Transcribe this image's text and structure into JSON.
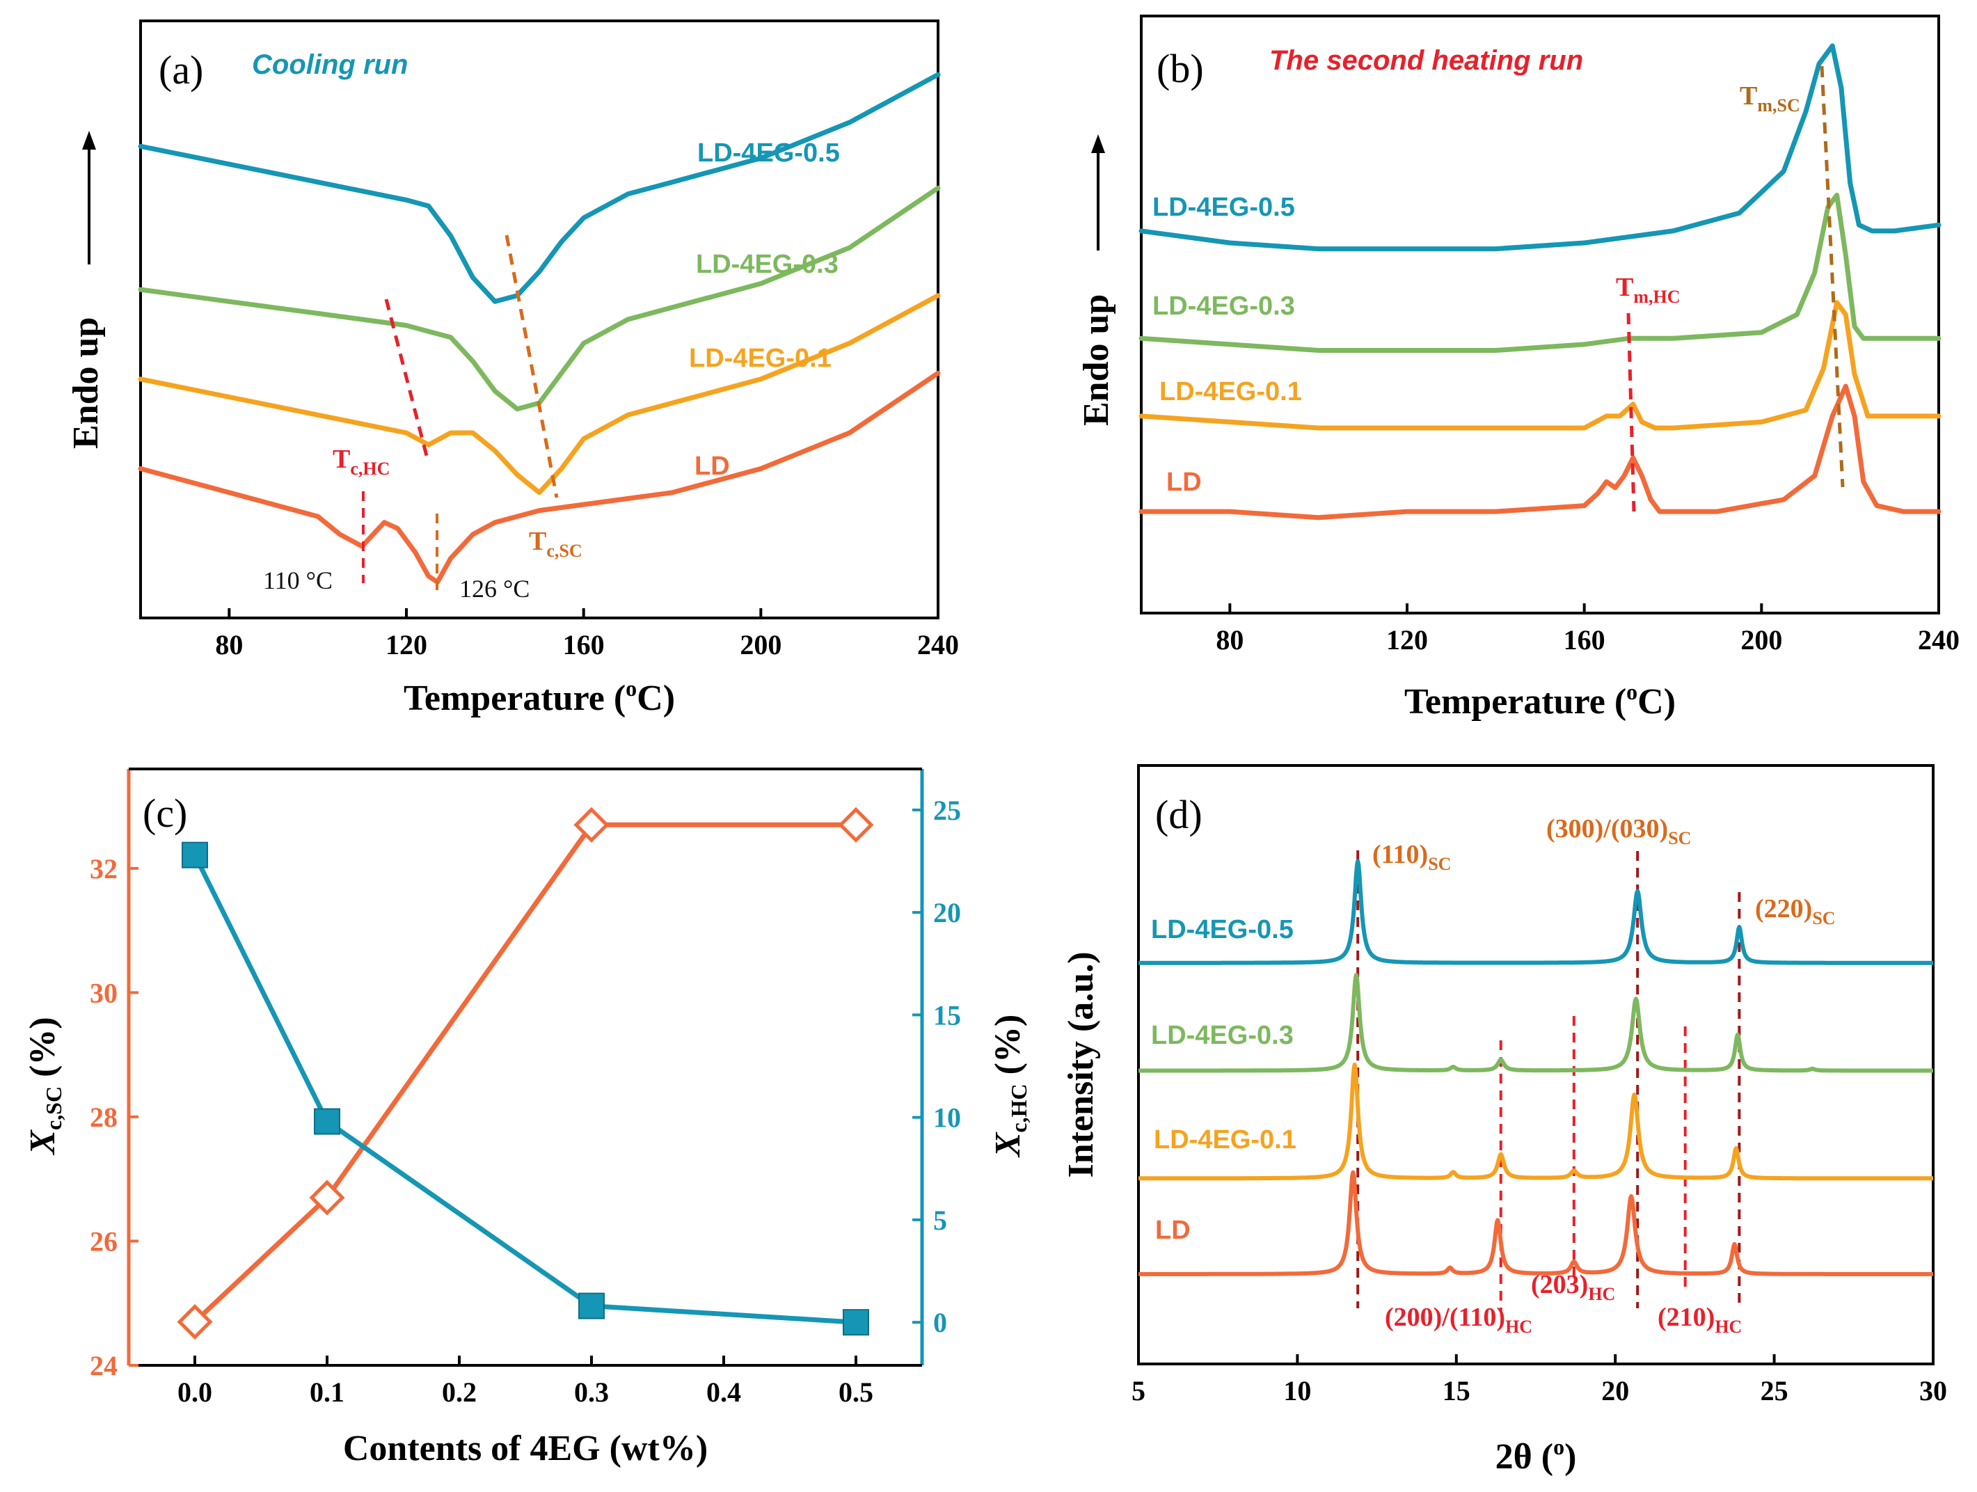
{
  "colors": {
    "ld": "#F26A3A",
    "eg01": "#F5A31F",
    "eg03": "#7DB85E",
    "eg05": "#1596B5",
    "red_dash": "#E8202A",
    "brown_dash": "#B06A1A",
    "orange_dash": "#D96A1C",
    "dark_red_dash": "#A01818",
    "axis": "#000000"
  },
  "chart_data": [
    {
      "id": "a",
      "type": "line",
      "panel_label": "(a)",
      "title": "Cooling run",
      "xlabel": "Temperature (oC)",
      "xlabel_main": "Temperature (",
      "xlabel_sup": "o",
      "xlabel_end": "C)",
      "ylabel": "Endo up",
      "xlim": [
        60,
        240
      ],
      "ylim": [
        0,
        100
      ],
      "xticks": [
        "80",
        "120",
        "160",
        "200",
        "240"
      ],
      "xtick_values": [
        80,
        120,
        160,
        200,
        240
      ],
      "series": [
        {
          "name": "LD-4EG-0.5",
          "color_key": "eg05",
          "x": [
            60,
            80,
            100,
            120,
            125,
            130,
            135,
            140,
            145,
            150,
            155,
            160,
            170,
            180,
            200,
            220,
            240
          ],
          "y": [
            79,
            76,
            73,
            70,
            69,
            64,
            57,
            53,
            54,
            58,
            63,
            67,
            71,
            73,
            77,
            83,
            91
          ]
        },
        {
          "name": "LD-4EG-0.3",
          "color_key": "eg03",
          "x": [
            60,
            80,
            100,
            120,
            125,
            130,
            135,
            140,
            145,
            150,
            155,
            160,
            170,
            180,
            200,
            220,
            240
          ],
          "y": [
            55,
            53,
            51,
            49,
            48,
            47,
            43,
            38,
            35,
            36,
            41,
            46,
            50,
            52,
            56,
            62,
            72
          ]
        },
        {
          "name": "LD-4EG-0.1",
          "color_key": "eg01",
          "x": [
            60,
            80,
            100,
            120,
            125,
            130,
            135,
            140,
            145,
            150,
            155,
            160,
            170,
            180,
            200,
            220,
            240
          ],
          "y": [
            40,
            37,
            34,
            31,
            29,
            31,
            31,
            28,
            24,
            21,
            25,
            30,
            34,
            36,
            40,
            46,
            54
          ]
        },
        {
          "name": "LD",
          "color_key": "ld",
          "x": [
            60,
            80,
            100,
            105,
            110,
            115,
            118,
            122,
            125,
            127,
            130,
            135,
            140,
            150,
            160,
            180,
            200,
            220,
            240
          ],
          "y": [
            25,
            21,
            17,
            14,
            12,
            16,
            15,
            11,
            7,
            6,
            10,
            14,
            16,
            18,
            19,
            21,
            25,
            31,
            41
          ]
        }
      ],
      "annotations": [
        {
          "text": "T",
          "sub": "c,HC",
          "color_key": "red_dash"
        },
        {
          "text": "T",
          "sub": "c,SC",
          "color_key": "orange_dash"
        },
        {
          "text": "110 °C"
        },
        {
          "text": "126 °C"
        }
      ]
    },
    {
      "id": "b",
      "type": "line",
      "panel_label": "(b)",
      "title": "The second heating run",
      "xlabel": "Temperature (oC)",
      "xlabel_main": "Temperature (",
      "xlabel_sup": "o",
      "xlabel_end": "C)",
      "ylabel": "Endo up",
      "xlim": [
        60,
        240
      ],
      "ylim": [
        0,
        100
      ],
      "xticks": [
        "80",
        "120",
        "160",
        "200",
        "240"
      ],
      "xtick_values": [
        80,
        120,
        160,
        200,
        240
      ],
      "series": [
        {
          "name": "LD-4EG-0.5",
          "color_key": "eg05",
          "x": [
            60,
            80,
            100,
            120,
            140,
            160,
            180,
            195,
            205,
            210,
            213,
            216,
            218,
            220,
            222,
            225,
            230,
            240
          ],
          "y": [
            64,
            62,
            61,
            61,
            61,
            62,
            64,
            67,
            74,
            84,
            92,
            95,
            88,
            72,
            65,
            64,
            64,
            65
          ]
        },
        {
          "name": "LD-4EG-0.3",
          "color_key": "eg03",
          "x": [
            60,
            80,
            100,
            120,
            140,
            160,
            170,
            175,
            180,
            200,
            208,
            212,
            215,
            217,
            219,
            221,
            223,
            226,
            240
          ],
          "y": [
            46,
            45,
            44,
            44,
            44,
            45,
            46,
            46,
            46,
            47,
            50,
            57,
            68,
            70,
            60,
            48,
            46,
            46,
            46
          ]
        },
        {
          "name": "LD-4EG-0.1",
          "color_key": "eg01",
          "x": [
            60,
            80,
            100,
            120,
            140,
            160,
            165,
            168,
            171,
            173,
            176,
            180,
            200,
            210,
            214,
            217,
            219,
            221,
            224,
            230,
            240
          ],
          "y": [
            33,
            32,
            31,
            31,
            31,
            31,
            33,
            33,
            35,
            32,
            31,
            31,
            32,
            34,
            41,
            52,
            50,
            40,
            33,
            33,
            33
          ]
        },
        {
          "name": "LD",
          "color_key": "ld",
          "x": [
            60,
            80,
            100,
            120,
            140,
            160,
            163,
            165,
            167,
            169,
            171,
            173,
            175,
            177,
            190,
            205,
            212,
            216,
            219,
            221,
            223,
            226,
            232,
            240
          ],
          "y": [
            17,
            17,
            16,
            17,
            17,
            18,
            20,
            22,
            21,
            23,
            26,
            23,
            19,
            17,
            17,
            19,
            23,
            33,
            38,
            33,
            22,
            18,
            17,
            17
          ]
        }
      ],
      "annotations": [
        {
          "text": "T",
          "sub": "m,HC",
          "color_key": "red_dash"
        },
        {
          "text": "T",
          "sub": "m,SC",
          "color_key": "brown_dash"
        }
      ]
    },
    {
      "id": "c",
      "type": "line",
      "panel_label": "(c)",
      "xlabel": "Contents of  4EG (wt%)",
      "xlim": [
        -0.05,
        0.55
      ],
      "ylim_left": [
        24,
        33.6
      ],
      "ylim_right": [
        -2.1,
        27
      ],
      "xticks": [
        "0.0",
        "0.1",
        "0.2",
        "0.3",
        "0.4",
        "0.5"
      ],
      "xtick_values": [
        0.0,
        0.1,
        0.2,
        0.3,
        0.4,
        0.5
      ],
      "yticks_left": [
        "24",
        "26",
        "28",
        "30",
        "32"
      ],
      "ytick_values_left": [
        24,
        26,
        28,
        30,
        32
      ],
      "yticks_right": [
        "0",
        "5",
        "10",
        "15",
        "20",
        "25"
      ],
      "ytick_values_right": [
        0,
        5,
        10,
        15,
        20,
        25
      ],
      "ylabel_left_main": "X",
      "ylabel_left_sub": "c,SC",
      "ylabel_left_end": " (%)",
      "ylabel_right_main": "X",
      "ylabel_right_sub": "c,HC",
      "ylabel_right_end": " (%)",
      "series": [
        {
          "name": "Xc,SC",
          "axis": "left",
          "color_key": "ld",
          "marker": "diamond-open",
          "x": [
            0.0,
            0.1,
            0.3,
            0.5
          ],
          "y": [
            24.7,
            26.7,
            32.7,
            32.7
          ]
        },
        {
          "name": "Xc,HC",
          "axis": "right",
          "color_key": "eg05",
          "marker": "square-filled",
          "x": [
            0.0,
            0.1,
            0.3,
            0.5
          ],
          "y": [
            22.8,
            9.8,
            0.8,
            0.0
          ]
        }
      ]
    },
    {
      "id": "d",
      "type": "line",
      "panel_label": "(d)",
      "xlabel_main": "2θ (",
      "xlabel_sup": "o",
      "xlabel_end": ")",
      "ylabel": "Intensity (a.u.)",
      "xlim": [
        5,
        30
      ],
      "ylim": [
        0,
        100
      ],
      "xticks": [
        "5",
        "10",
        "15",
        "20",
        "25",
        "30"
      ],
      "xtick_values": [
        5,
        10,
        15,
        20,
        25,
        30
      ],
      "series": [
        {
          "name": "LD-4EG-0.5",
          "color_key": "eg05",
          "baseline": 67,
          "peaks": [
            [
              11.9,
              17,
              0.13
            ],
            [
              20.7,
              12,
              0.15
            ],
            [
              23.9,
              6,
              0.1
            ]
          ]
        },
        {
          "name": "LD-4EG-0.3",
          "color_key": "eg03",
          "baseline": 49,
          "peaks": [
            [
              11.85,
              16,
              0.13
            ],
            [
              16.4,
              1.8,
              0.12
            ],
            [
              20.65,
              12,
              0.15
            ],
            [
              23.85,
              6,
              0.1
            ],
            [
              14.9,
              0.6,
              0.1
            ],
            [
              26.2,
              0.3,
              0.1
            ]
          ]
        },
        {
          "name": "LD-4EG-0.1",
          "color_key": "eg01",
          "baseline": 31,
          "peaks": [
            [
              11.8,
              19,
              0.13
            ],
            [
              16.4,
              4,
              0.12
            ],
            [
              18.7,
              1.2,
              0.12
            ],
            [
              20.6,
              14,
              0.15
            ],
            [
              23.8,
              5,
              0.1
            ],
            [
              14.9,
              1,
              0.1
            ]
          ]
        },
        {
          "name": "LD",
          "color_key": "ld",
          "baseline": 15,
          "peaks": [
            [
              11.75,
              17,
              0.13
            ],
            [
              16.3,
              9,
              0.12
            ],
            [
              18.7,
              2,
              0.12
            ],
            [
              20.5,
              13,
              0.15
            ],
            [
              23.75,
              5,
              0.1
            ],
            [
              14.8,
              1,
              0.1
            ]
          ]
        }
      ],
      "reflections": [
        {
          "label": "(110)",
          "sub": "SC",
          "x": 11.9,
          "color_key": "dark_red_dash"
        },
        {
          "label": "(300)/(030)",
          "sub": "SC",
          "x": 20.7,
          "color_key": "dark_red_dash"
        },
        {
          "label": "(220)",
          "sub": "SC",
          "x": 23.9,
          "color_key": "dark_red_dash"
        },
        {
          "label": "(200)/(110)",
          "sub": "HC",
          "x": 16.4,
          "color_key": "red_dash"
        },
        {
          "label": "(203)",
          "sub": "HC",
          "x": 18.7,
          "color_key": "red_dash"
        },
        {
          "label": "(210)",
          "sub": "HC",
          "x": 22.2,
          "color_key": "red_dash"
        }
      ]
    }
  ]
}
